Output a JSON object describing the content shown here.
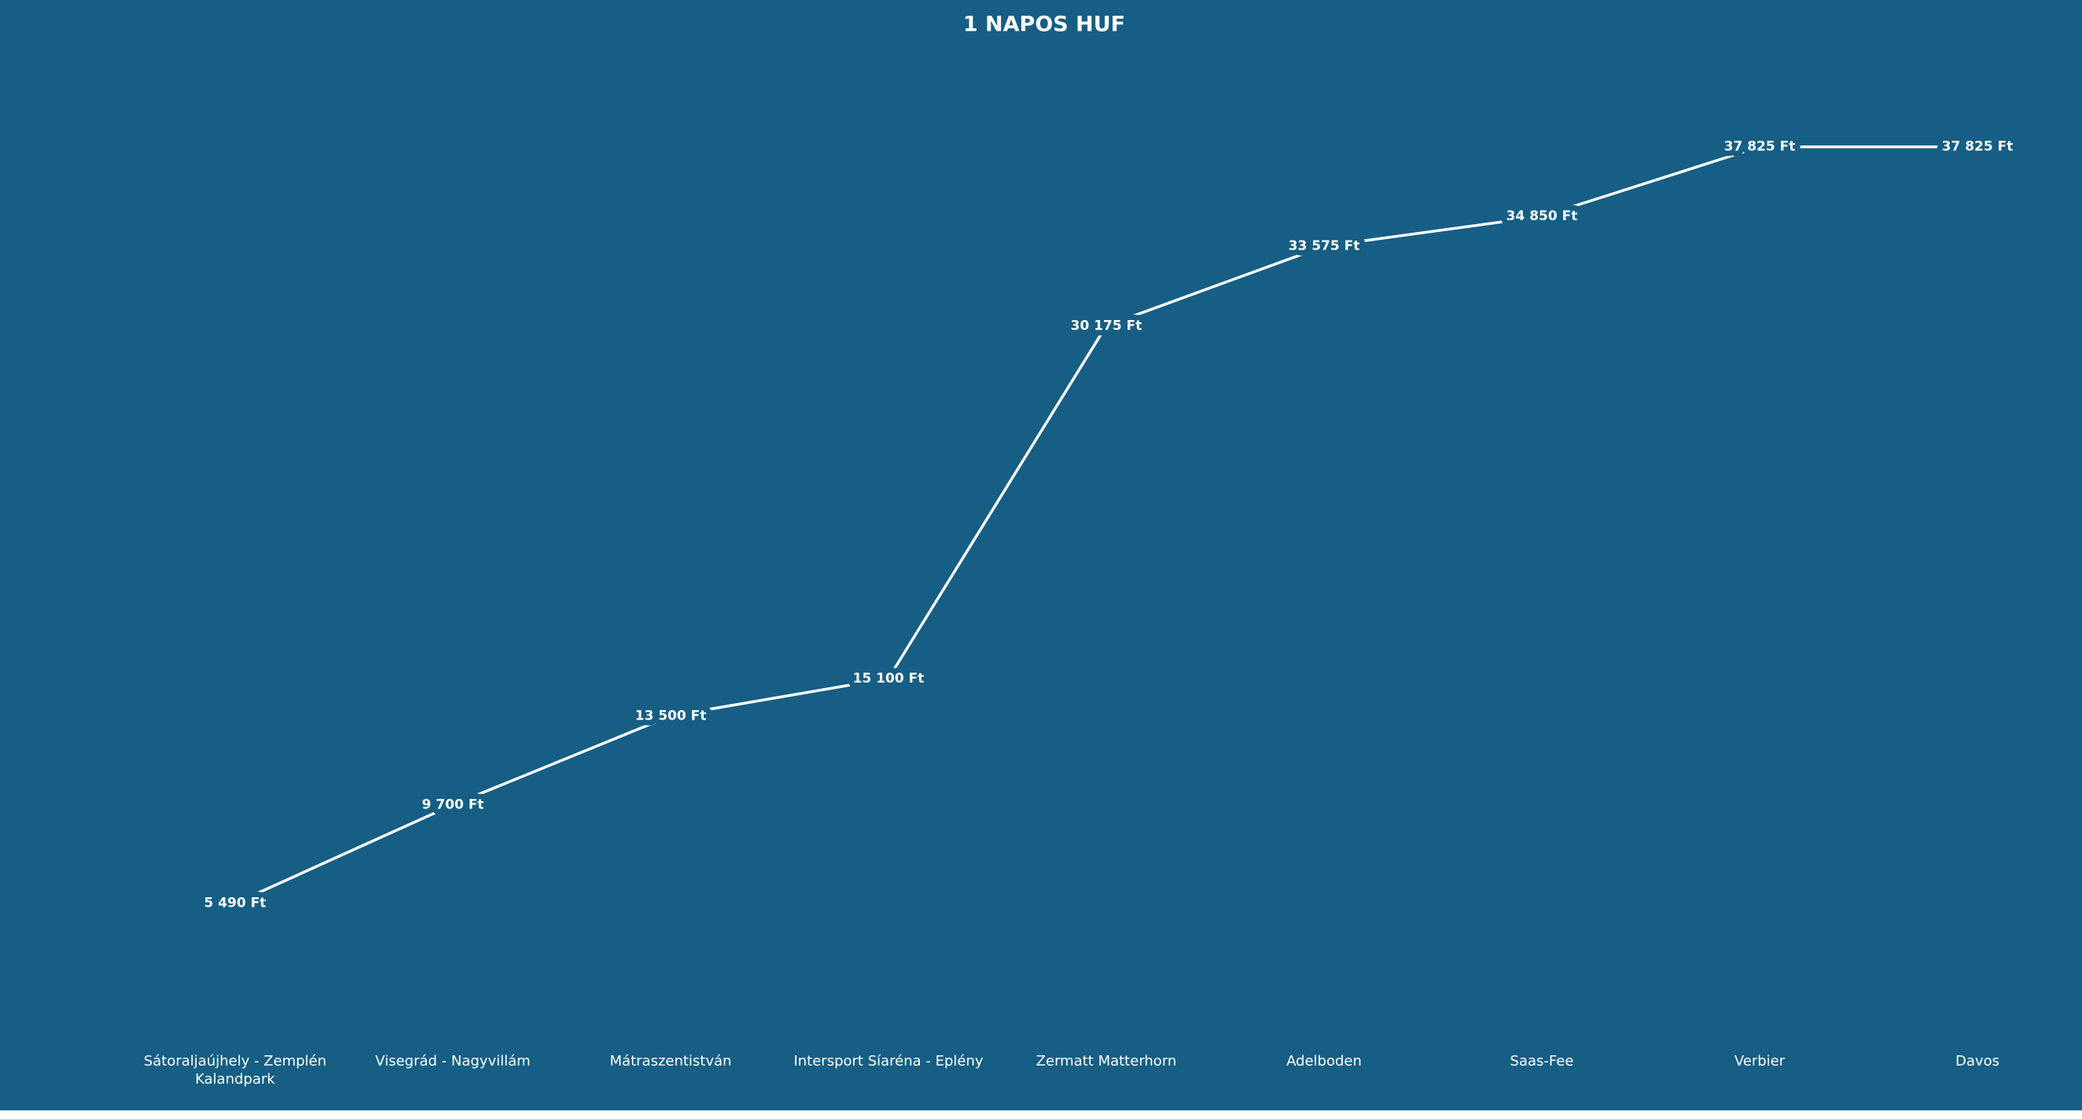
{
  "chart_data": {
    "type": "line",
    "title": "1 NAPOS HUF",
    "categories": [
      "Sátoraljaújhely - Zemplén Kalandpark",
      "Visegrád - Nagyvillám",
      "Mátraszentistván",
      "Intersport Síaréna - Eplény",
      "Zermatt Matterhorn",
      "Adelboden",
      "Saas-Fee",
      "Verbier",
      "Davos"
    ],
    "values": [
      5490,
      9700,
      13500,
      15100,
      30175,
      33575,
      34850,
      37825,
      37825
    ],
    "value_labels": [
      "5 490 Ft",
      "9 700 Ft",
      "13 500 Ft",
      "15 100 Ft",
      "30 175 Ft",
      "33 575 Ft",
      "34 850 Ft",
      "37 825 Ft",
      "37 825 Ft"
    ],
    "color": "#ffffff",
    "ylim": [
      0,
      40000
    ]
  }
}
